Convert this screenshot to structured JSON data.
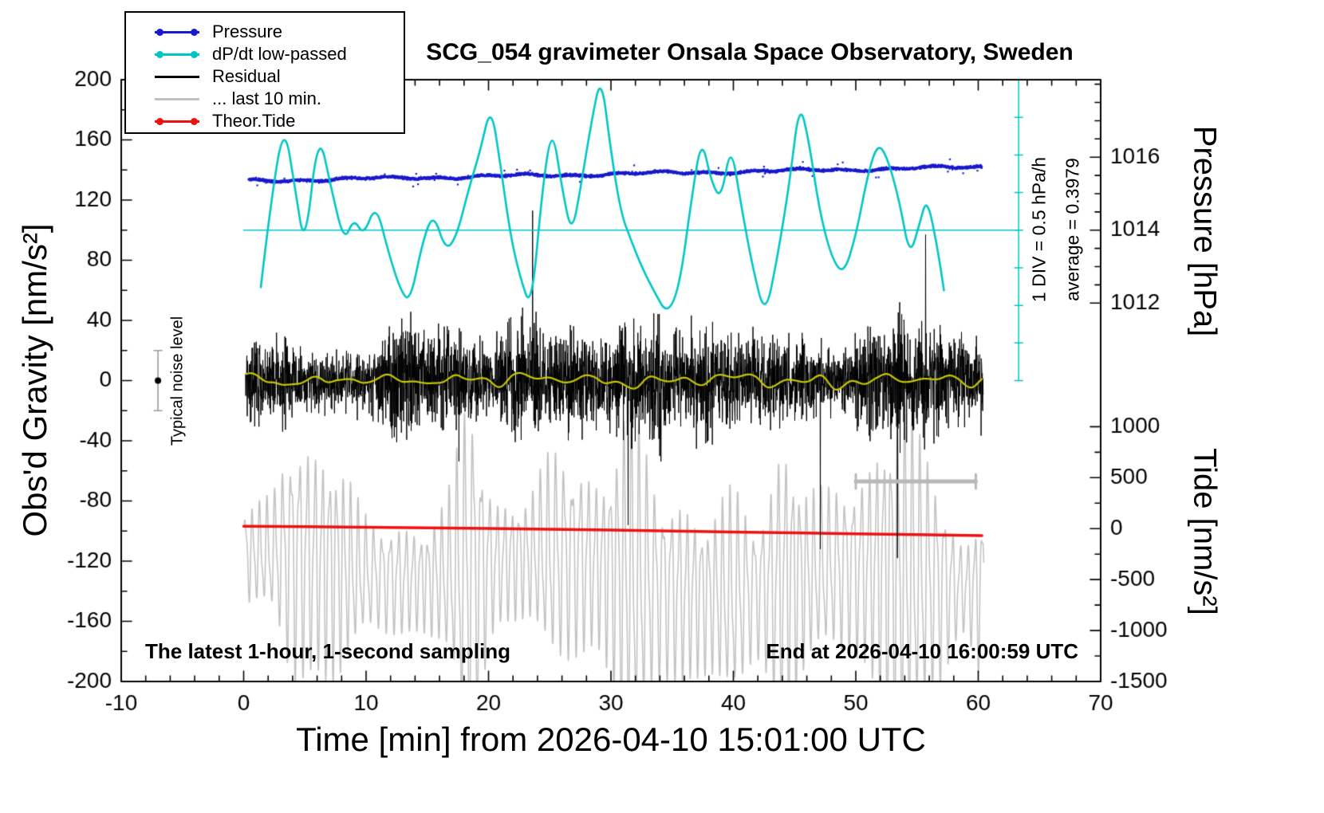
{
  "chart_data": {
    "type": "line",
    "title": "SCG_054 gravimeter Onsala Space Observatory, Sweden",
    "xlabel": "Time [min] from 2026-04-10 15:01:00 UTC",
    "x_axis": {
      "lim": [
        -10,
        70
      ],
      "major_ticks": [
        -10,
        0,
        10,
        20,
        30,
        40,
        50,
        60,
        70
      ],
      "minor_step": 2
    },
    "left_axis": {
      "label": "Obs'd Gravity [nm/s²]",
      "lim": [
        -200,
        200
      ],
      "major_ticks": [
        -200,
        -160,
        -120,
        -80,
        -40,
        0,
        40,
        80,
        120,
        160,
        200
      ],
      "minor_step": 20
    },
    "right_axis_pressure": {
      "label": "Pressure [hPa]",
      "ticks": [
        {
          "label": "1016",
          "hpa": 1016
        },
        {
          "label": "1014",
          "hpa": 1014
        },
        {
          "label": "1012",
          "hpa": 1012
        }
      ],
      "map": {
        "ref_hpa": 1014,
        "ref_gravity": 100,
        "gravity_per_hpa": 24.25
      },
      "minor_step": 0.5,
      "minor_range": [
        1011.5,
        1018
      ],
      "minor_gravity_min": 40
    },
    "right_axis_tide": {
      "label": "Tide [nm/s²]",
      "ticks": [
        {
          "label": "1000",
          "tide": 1000
        },
        {
          "label": "500",
          "tide": 500
        },
        {
          "label": "0",
          "tide": 0
        },
        {
          "label": "-500",
          "tide": -500
        },
        {
          "label": "-1000",
          "tide": -1000
        },
        {
          "label": "-1500",
          "tide": -1500
        }
      ],
      "map": {
        "ref_tide": 0,
        "ref_gravity": -98.4,
        "gravity_per_500": 33.87
      },
      "minor_step": 250,
      "minor_range": [
        -1500,
        1000
      ],
      "minor_gravity_max": -20
    },
    "legend": [
      {
        "label": "Pressure",
        "color": "#1a1acd",
        "marker": "dots",
        "icon": "pressure-swatch-icon"
      },
      {
        "label": "dP/dt low-passed",
        "color": "#00c5c5",
        "marker": "dots",
        "icon": "dpdt-swatch-icon"
      },
      {
        "label": "Residual",
        "color": "#000000",
        "marker": "line",
        "icon": "residual-swatch-icon"
      },
      {
        "label": "... last 10 min.",
        "color": "#c0c0c0",
        "marker": "line",
        "icon": "last10min-swatch-icon"
      },
      {
        "label": "Theor.Tide",
        "color": "#ee1111",
        "marker": "dots",
        "icon": "tide-swatch-icon"
      }
    ],
    "annotations": {
      "div_scale": "1 DIV = 0.5 hPa/h",
      "average": "average = 0.3979",
      "noise_label": "Typical noise level",
      "sampling_note": "The latest 1-hour, 1-second sampling",
      "end_note": "End at 2026-04-10 16:00:59 UTC"
    },
    "series": {
      "pressure": {
        "color": "#1a1acd",
        "x_range": [
          0.4,
          60.3
        ],
        "start_hpa": 1015.35,
        "end_hpa": 1015.73,
        "noise_hpa": 0.055,
        "seed": 11
      },
      "dpdt": {
        "color": "#00c5c5",
        "points": [
          [
            1.4,
            62
          ],
          [
            2.2,
            118
          ],
          [
            3.3,
            172
          ],
          [
            4.2,
            128
          ],
          [
            5,
            86
          ],
          [
            6.1,
            168
          ],
          [
            7.2,
            126
          ],
          [
            8.2,
            92
          ],
          [
            9,
            108
          ],
          [
            9.8,
            96
          ],
          [
            10.8,
            118
          ],
          [
            11.8,
            86
          ],
          [
            12.8,
            60
          ],
          [
            13.6,
            52
          ],
          [
            14.6,
            92
          ],
          [
            15.5,
            112
          ],
          [
            16.5,
            86
          ],
          [
            17.4,
            96
          ],
          [
            18.4,
            128
          ],
          [
            19.3,
            152
          ],
          [
            20.2,
            184
          ],
          [
            21,
            142
          ],
          [
            21.8,
            96
          ],
          [
            22.6,
            68
          ],
          [
            23.5,
            47
          ],
          [
            24.4,
            128
          ],
          [
            25.2,
            170
          ],
          [
            26,
            128
          ],
          [
            26.8,
            96
          ],
          [
            27.6,
            132
          ],
          [
            28.4,
            172
          ],
          [
            29.2,
            204
          ],
          [
            30,
            152
          ],
          [
            30.8,
            112
          ],
          [
            31.6,
            94
          ],
          [
            32.6,
            74
          ],
          [
            33.6,
            58
          ],
          [
            34.6,
            44
          ],
          [
            35.6,
            62
          ],
          [
            36.6,
            122
          ],
          [
            37.4,
            162
          ],
          [
            38.2,
            132
          ],
          [
            39,
            120
          ],
          [
            39.8,
            158
          ],
          [
            40.6,
            118
          ],
          [
            41.6,
            74
          ],
          [
            42.6,
            42
          ],
          [
            43.6,
            82
          ],
          [
            44.6,
            132
          ],
          [
            45.4,
            186
          ],
          [
            46.2,
            158
          ],
          [
            47,
            114
          ],
          [
            48,
            82
          ],
          [
            49,
            70
          ],
          [
            50,
            96
          ],
          [
            51,
            138
          ],
          [
            51.8,
            158
          ],
          [
            52.6,
            148
          ],
          [
            53.6,
            118
          ],
          [
            54.4,
            82
          ],
          [
            55.2,
            104
          ],
          [
            55.8,
            122
          ],
          [
            56.6,
            92
          ],
          [
            57.2,
            60
          ]
        ],
        "average_line": {
          "y": 100,
          "x_range": [
            0,
            63.3
          ]
        },
        "div_scale": {
          "x": 63.3,
          "y_range": [
            200,
            0
          ],
          "tick_step": 25
        }
      },
      "residual": {
        "color": "#000000",
        "x_range": [
          0.15,
          60.4
        ],
        "seed": 23,
        "spikes": [
          {
            "t": 23.6,
            "v": 113
          },
          {
            "t": 31.4,
            "v": -96
          },
          {
            "t": 47.1,
            "v": -112
          },
          {
            "t": 53.4,
            "v": -118
          },
          {
            "t": 55.7,
            "v": 97
          }
        ]
      },
      "residual_lowpass": {
        "color": "#c8c800",
        "x_range": [
          0.2,
          60.3
        ],
        "seed": 31
      },
      "last10min": {
        "color": "#c3c3c3",
        "x_range": [
          0.05,
          60.45
        ],
        "center": -128,
        "period": 0.62,
        "seed": 7,
        "bursts": [
          {
            "t": 18.3,
            "w": 1.2,
            "a": 1.15
          },
          {
            "t": 31.6,
            "w": 1.6,
            "a": 0.9
          },
          {
            "t": 53.6,
            "w": 2.4,
            "a": 0.85
          },
          {
            "t": 8.2,
            "w": 1.6,
            "a": 0.5
          },
          {
            "t": 44,
            "w": 2,
            "a": 0.45
          }
        ]
      },
      "tide": {
        "color": "#ee1111",
        "points": [
          [
            0,
            -96.8
          ],
          [
            5,
            -97.1
          ],
          [
            10,
            -97.5
          ],
          [
            15,
            -97.9
          ],
          [
            20,
            -98.3
          ],
          [
            25,
            -98.8
          ],
          [
            30,
            -99.4
          ],
          [
            35,
            -100
          ],
          [
            40,
            -100.6
          ],
          [
            45,
            -101.2
          ],
          [
            50,
            -101.8
          ],
          [
            55,
            -102.4
          ],
          [
            60.3,
            -103
          ]
        ]
      }
    },
    "markers": {
      "noise_level": {
        "x": -7,
        "y": 0,
        "error": 20,
        "dot_color": "#000000",
        "bar_color": "#9a9a9a"
      },
      "gray_bar": {
        "x1": 50,
        "x2": 59.8,
        "y": -67,
        "color": "#b8b8b8"
      }
    }
  }
}
